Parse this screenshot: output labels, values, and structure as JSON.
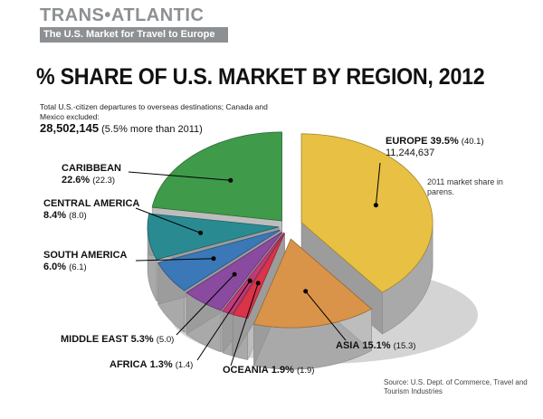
{
  "brand": {
    "name": "TRANS•ATLANTIC",
    "tagline": "The U.S. Market for Travel to Europe"
  },
  "chart_data": {
    "type": "pie",
    "title": "% SHARE OF U.S. MARKET BY REGION, 2012",
    "subtitle": "Total U.S.-citizen departures to overseas destinations; Canada and Mexico excluded:",
    "total": {
      "value": "28,502,145",
      "note": "(5.5% more than 2011)"
    },
    "legend_note": "2011 market share in parens.",
    "source": "Source: U.S. Dept. of Commerce, Travel and Tourism Industries",
    "slices": [
      {
        "name": "EUROPE",
        "value": 39.5,
        "value_label": "39.5%",
        "prev_label": "(40.1)",
        "extra": "11,244,637",
        "color": "#e8c043"
      },
      {
        "name": "ASIA",
        "value": 15.1,
        "value_label": "15.1%",
        "prev_label": "(15.3)",
        "color": "#d9944a"
      },
      {
        "name": "OCEANIA",
        "value": 1.9,
        "value_label": "1.9%",
        "prev_label": "(1.9)",
        "color": "#d9344a"
      },
      {
        "name": "AFRICA",
        "value": 1.3,
        "value_label": "1.3%",
        "prev_label": "(1.4)",
        "color": "#c23a7a"
      },
      {
        "name": "MIDDLE EAST",
        "value": 5.3,
        "value_label": "5.3%",
        "prev_label": "(5.0)",
        "color": "#8a4aa0"
      },
      {
        "name": "SOUTH AMERICA",
        "value": 6.0,
        "value_label": "6.0%",
        "prev_label": "(6.1)",
        "color": "#3a78b8"
      },
      {
        "name": "CENTRAL AMERICA",
        "value": 8.4,
        "value_label": "8.4%",
        "prev_label": "(8.0)",
        "color": "#2a8a92"
      },
      {
        "name": "CARIBBEAN",
        "value": 22.6,
        "value_label": "22.6%",
        "prev_label": "(22.3)",
        "color": "#3f9a4a"
      }
    ]
  }
}
